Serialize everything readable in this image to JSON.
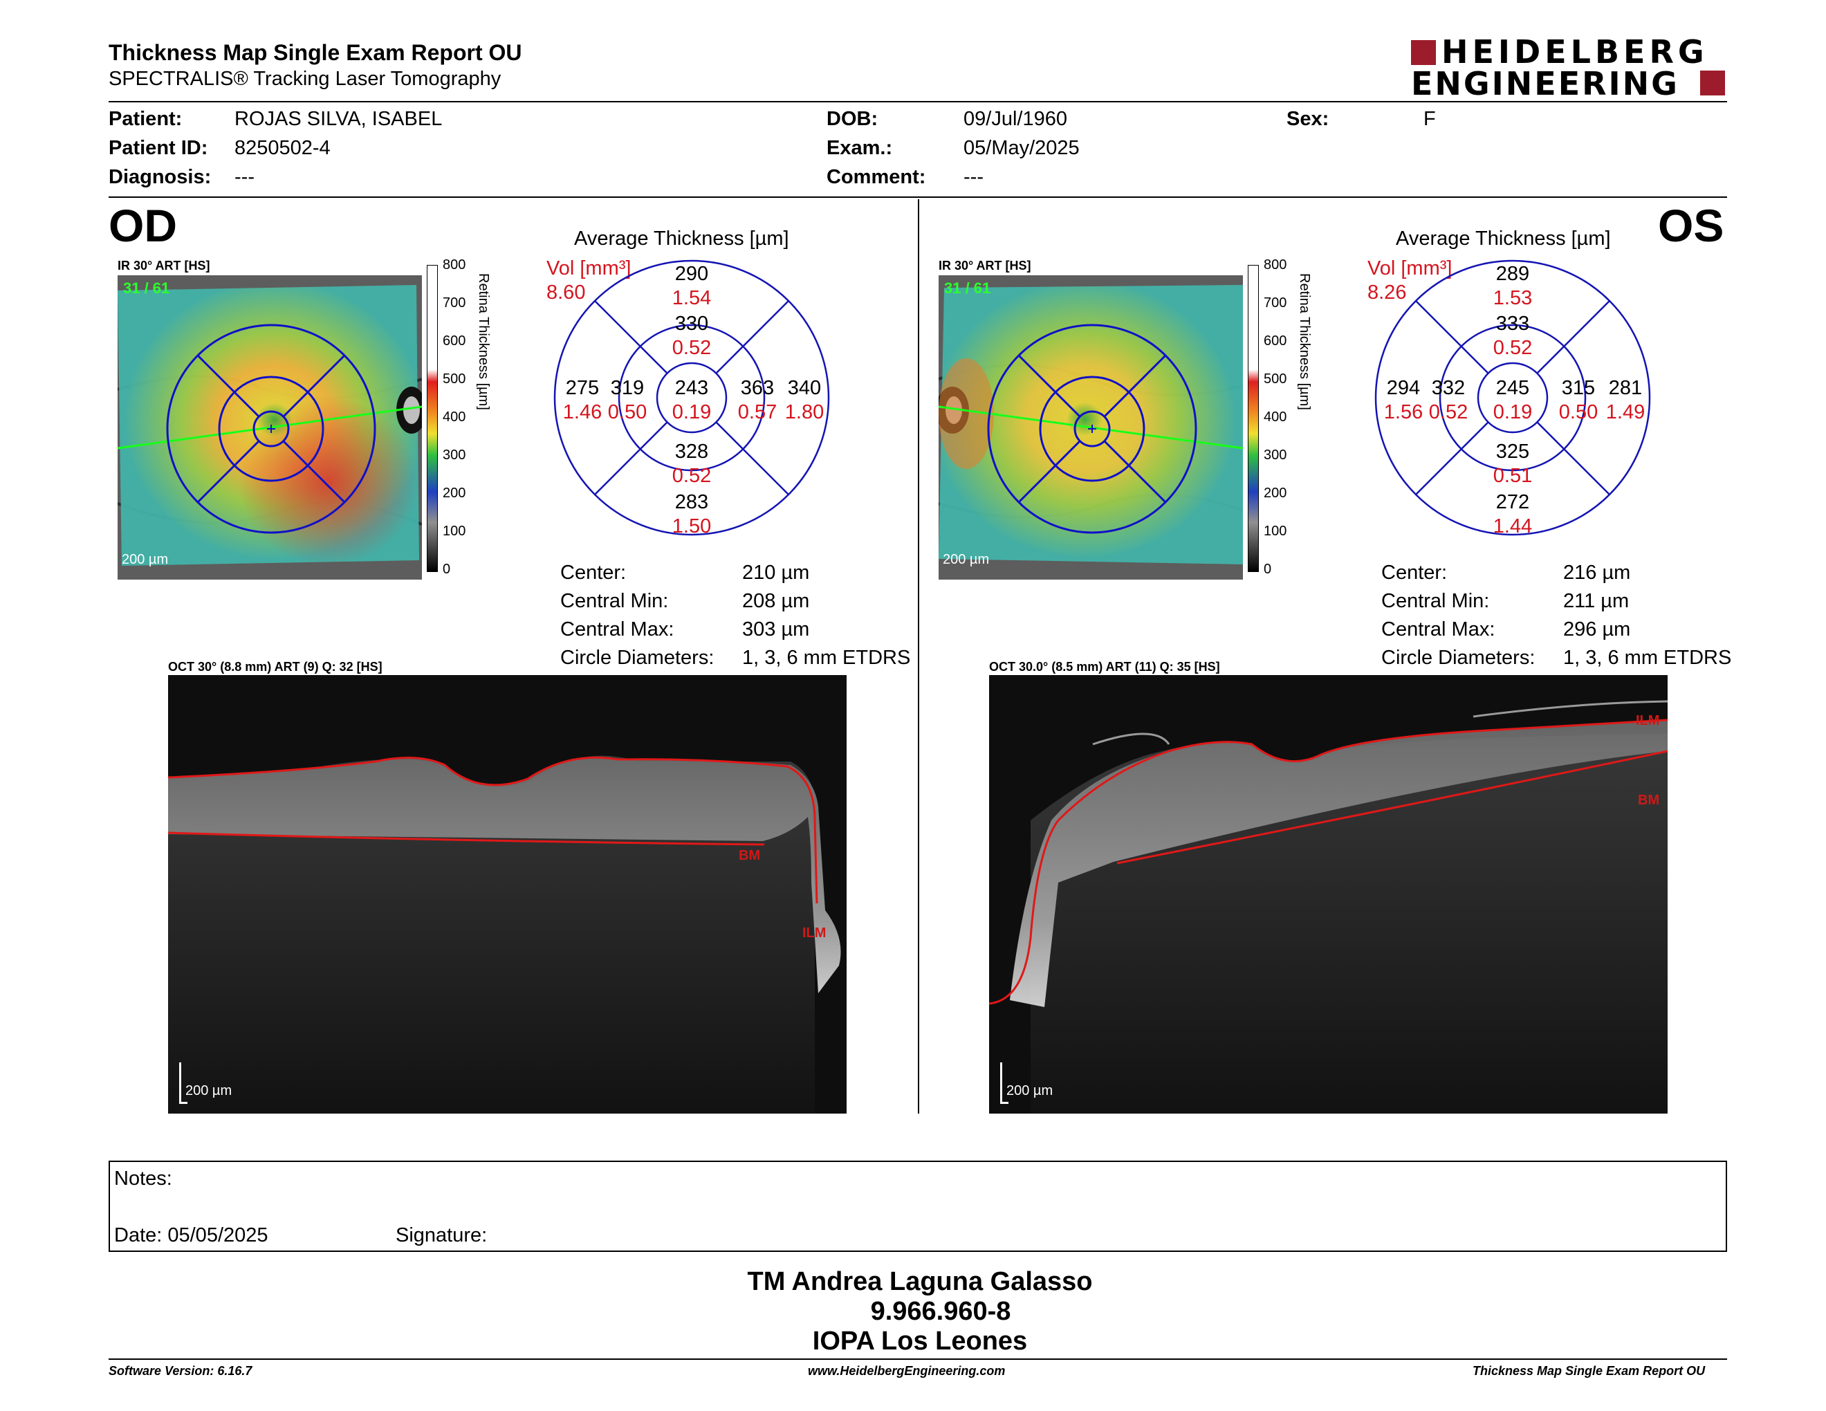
{
  "header": {
    "title": "Thickness Map Single Exam Report OU",
    "subtitle": "SPECTRALIS® Tracking Laser Tomography",
    "logo_line1": "HEIDELBERG",
    "logo_line2": "ENGINEERING",
    "logo_color": "#9c1c2c"
  },
  "patient": {
    "patient_label": "Patient:",
    "patient_value": "ROJAS SILVA, ISABEL",
    "id_label": "Patient ID:",
    "id_value": "8250502-4",
    "diag_label": "Diagnosis:",
    "diag_value": "---",
    "dob_label": "DOB:",
    "dob_value": "09/Jul/1960",
    "exam_label": "Exam.:",
    "exam_value": "05/May/2025",
    "comment_label": "Comment:",
    "comment_value": "---",
    "sex_label": "Sex:",
    "sex_value": "F"
  },
  "od": {
    "eye": "OD",
    "ir_label": "IR 30° ART [HS]",
    "frame_counter": "31 / 61",
    "scale_label": "200 µm",
    "colorbar_ticks": [
      "800",
      "700",
      "600",
      "500",
      "400",
      "300",
      "200",
      "100",
      "0"
    ],
    "colorbar_title": "Retina  Thickness [µm]",
    "avg_title": "Average Thickness [µm]",
    "vol_label": "Vol [mm³]",
    "vol_value": "8.60",
    "grid": {
      "sup_outer_t": "290",
      "sup_outer_v": "1.54",
      "sup_inner_t": "330",
      "sup_inner_v": "0.52",
      "temp_outer_t": "275",
      "temp_outer_v": "1.46",
      "temp_inner_t": "319",
      "temp_inner_v": "0.50",
      "center_t": "243",
      "center_v": "0.19",
      "nas_inner_t": "363",
      "nas_inner_v": "0.57",
      "nas_outer_t": "340",
      "nas_outer_v": "1.80",
      "inf_inner_t": "328",
      "inf_inner_v": "0.52",
      "inf_outer_t": "283",
      "inf_outer_v": "1.50"
    },
    "stats": {
      "center_l": "Center:",
      "center_v": "210 µm",
      "min_l": "Central Min:",
      "min_v": "208 µm",
      "max_l": "Central Max:",
      "max_v": "303 µm",
      "diam_l": "Circle Diameters:",
      "diam_v": "1, 3, 6 mm ETDRS"
    },
    "oct_label": "OCT 30° (8.8 mm) ART (9) Q: 32 [HS]",
    "oct_scale": "200 µm",
    "bm_label": "BM",
    "ilm_label": "ILM"
  },
  "os": {
    "eye": "OS",
    "ir_label": "IR 30° ART [HS]",
    "frame_counter": "31 / 61",
    "scale_label": "200 µm",
    "colorbar_ticks": [
      "800",
      "700",
      "600",
      "500",
      "400",
      "300",
      "200",
      "100",
      "0"
    ],
    "colorbar_title": "Retina  Thickness [µm]",
    "avg_title": "Average Thickness [µm]",
    "vol_label": "Vol [mm³]",
    "vol_value": "8.26",
    "grid": {
      "sup_outer_t": "289",
      "sup_outer_v": "1.53",
      "sup_inner_t": "333",
      "sup_inner_v": "0.52",
      "temp_outer_t": "294",
      "temp_outer_v": "1.56",
      "temp_inner_t": "332",
      "temp_inner_v": "0.52",
      "center_t": "245",
      "center_v": "0.19",
      "nas_inner_t": "315",
      "nas_inner_v": "0.50",
      "nas_outer_t": "281",
      "nas_outer_v": "1.49",
      "inf_inner_t": "325",
      "inf_inner_v": "0.51",
      "inf_outer_t": "272",
      "inf_outer_v": "1.44"
    },
    "stats": {
      "center_l": "Center:",
      "center_v": "216 µm",
      "min_l": "Central Min:",
      "min_v": "211 µm",
      "max_l": "Central Max:",
      "max_v": "296 µm",
      "diam_l": "Circle Diameters:",
      "diam_v": "1, 3, 6 mm ETDRS"
    },
    "oct_label": "OCT 30.0° (8.5 mm) ART (11) Q: 35 [HS]",
    "oct_scale": "200 µm",
    "bm_label": "BM",
    "ilm_label": "ILM"
  },
  "notes": {
    "notes_label": "Notes:",
    "date_label": "Date: 05/05/2025",
    "signature_label": "Signature:"
  },
  "signer": {
    "name": "TM Andrea Laguna Galasso",
    "id": "9.966.960-8",
    "org": "IOPA Los Leones"
  },
  "footer": {
    "version": "Software Version: 6.16.7",
    "website": "www.HeidelbergEngineering.com",
    "report": "Thickness Map Single Exam Report OU"
  }
}
